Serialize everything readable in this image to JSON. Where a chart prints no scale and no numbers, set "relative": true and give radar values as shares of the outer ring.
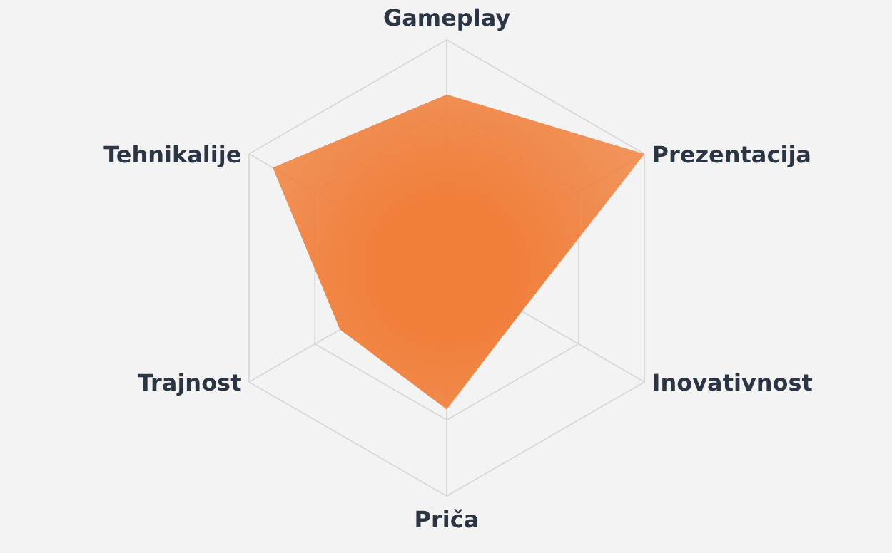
{
  "chart_data": {
    "type": "radar",
    "relative": true,
    "grid": true,
    "categories": [
      "Gameplay",
      "Prezentacija",
      "Inovativnost",
      "Priča",
      "Trajnost",
      "Tehnikalije"
    ],
    "series": [
      {
        "color": "#f07f3a",
        "values": [
          0.76,
          1,
          0.38,
          0.62,
          0.54,
          0.88
        ]
      }
    ]
  }
}
